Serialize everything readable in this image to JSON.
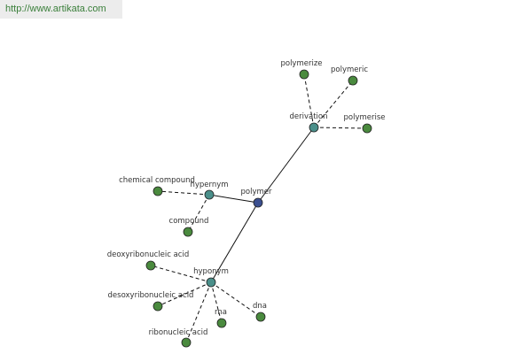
{
  "header": {
    "url": "http://www.artikata.com"
  },
  "nodes": [
    {
      "label": "polymer"
    },
    {
      "label": "derivation"
    },
    {
      "label": "hypernym"
    },
    {
      "label": "hyponym"
    },
    {
      "label": "polymerize"
    },
    {
      "label": "polymeric"
    },
    {
      "label": "polymerise"
    },
    {
      "label": "chemical compound"
    },
    {
      "label": "compound"
    },
    {
      "label": "deoxyribonucleic acid"
    },
    {
      "label": "desoxyribonucleic acid"
    },
    {
      "label": "rna"
    },
    {
      "label": "dna"
    },
    {
      "label": "ribonucleic acid"
    }
  ]
}
